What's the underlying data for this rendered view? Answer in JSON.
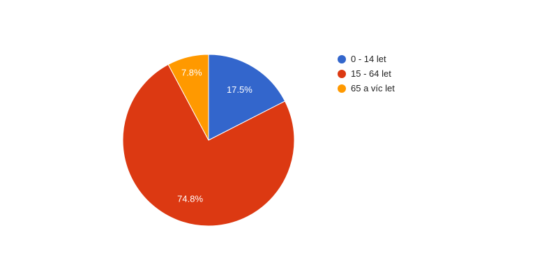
{
  "chart_data": {
    "type": "pie",
    "slices": [
      {
        "label": "0 - 14 let",
        "value": 17.5,
        "display": "17.5%",
        "color": "#3366cc"
      },
      {
        "label": "15 - 64 let",
        "value": 74.8,
        "display": "74.8%",
        "color": "#dc3912"
      },
      {
        "label": "65 a víc let",
        "value": 7.8,
        "display": "7.8%",
        "color": "#ff9900"
      }
    ],
    "legend_position": "right"
  }
}
